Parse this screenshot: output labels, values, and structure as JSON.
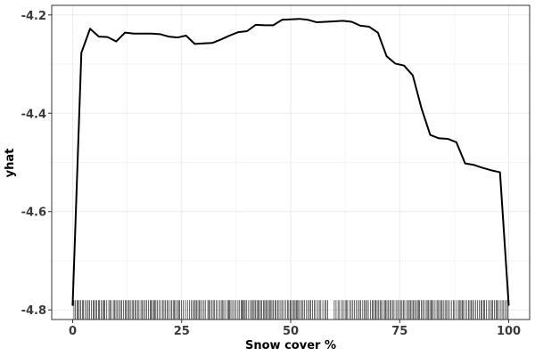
{
  "chart_data": {
    "type": "line",
    "title": "",
    "xlabel": "Snow cover %",
    "ylabel": "yhat",
    "xlim": [
      -4.8,
      104.8
    ],
    "ylim": [
      -4.8195,
      -4.1805
    ],
    "x_ticks": [
      0,
      25,
      50,
      75,
      100
    ],
    "x_tick_labels": [
      "0",
      "25",
      "50",
      "75",
      "100"
    ],
    "y_ticks": [
      -4.8,
      -4.6,
      -4.4,
      -4.2
    ],
    "y_tick_labels": [
      "-4.8",
      "-4.6",
      "-4.4",
      "-4.2"
    ],
    "grid": true,
    "legend": "none",
    "line_color": "#000000",
    "grid_color": "#ebebeb",
    "series": [
      {
        "x": [
          0,
          2,
          4,
          6,
          8,
          10,
          12,
          14,
          16,
          18,
          20,
          22,
          24,
          26,
          28,
          30,
          32,
          34,
          36,
          38,
          40,
          42,
          44,
          46,
          48,
          50,
          52,
          54,
          56,
          58,
          60,
          62,
          64,
          66,
          68,
          70,
          72,
          74,
          76,
          78,
          80,
          82,
          84,
          86,
          88,
          90,
          92,
          94,
          96,
          98,
          100
        ],
        "y": [
          -4.79,
          -4.277,
          -4.228,
          -4.244,
          -4.245,
          -4.254,
          -4.236,
          -4.238,
          -4.238,
          -4.238,
          -4.239,
          -4.244,
          -4.246,
          -4.242,
          -4.259,
          -4.258,
          -4.257,
          -4.25,
          -4.242,
          -4.235,
          -4.233,
          -4.22,
          -4.221,
          -4.221,
          -4.21,
          -4.209,
          -4.208,
          -4.21,
          -4.215,
          -4.214,
          -4.213,
          -4.212,
          -4.214,
          -4.222,
          -4.224,
          -4.236,
          -4.284,
          -4.299,
          -4.303,
          -4.323,
          -4.39,
          -4.444,
          -4.451,
          -4.452,
          -4.459,
          -4.502,
          -4.505,
          -4.511,
          -4.516,
          -4.52,
          -4.79
        ]
      }
    ],
    "rug": {
      "y": -4.8,
      "spans": [
        [
          0.3,
          30.5
        ],
        [
          31.0,
          58.5
        ],
        [
          60.0,
          100.0
        ]
      ]
    }
  }
}
